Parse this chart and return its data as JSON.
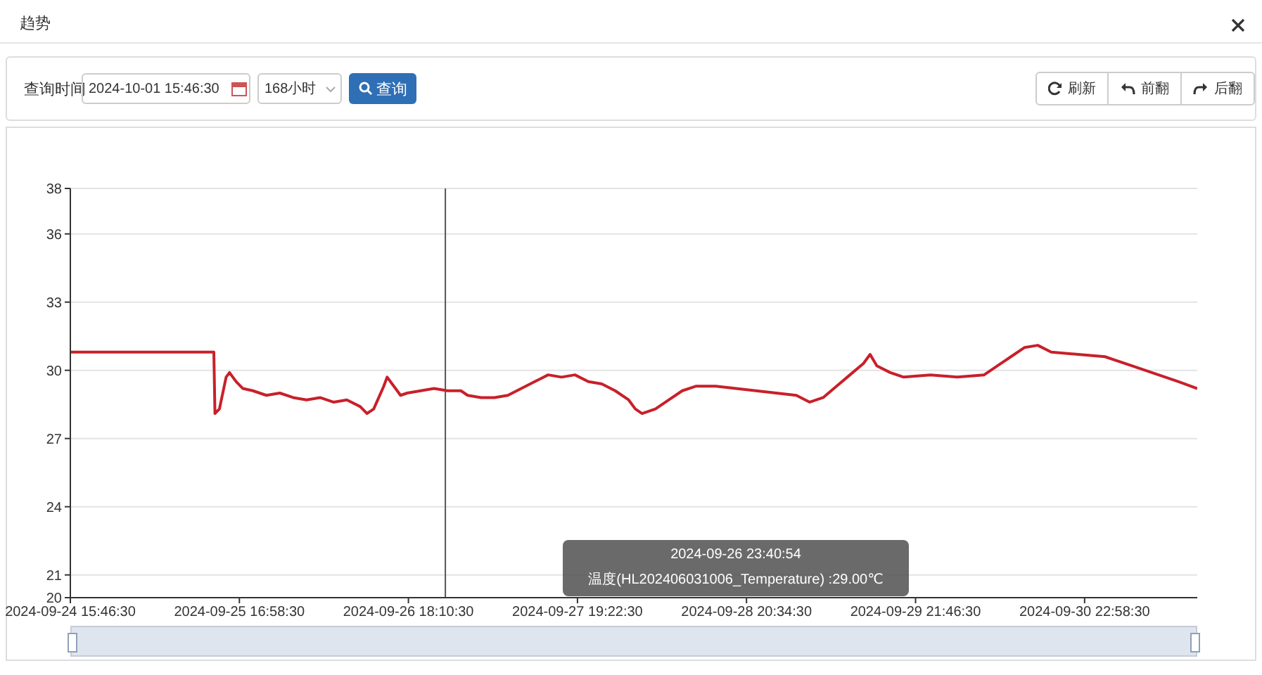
{
  "chart_data": {
    "type": "line",
    "title": "趋势",
    "annotations": [
      "查询时间",
      "2024-10-01 15:46:30",
      "168小时",
      "查询",
      "刷新",
      "前翻",
      "后翻",
      "2024-09-26 23:40:54",
      "温度(HL202406031006_Temperature) :29.00℃"
    ],
    "x": [
      "2024-09-24T15:46:30",
      "2024-09-25T13:10",
      "2024-09-25T13:20",
      "2024-09-25T14:00",
      "2024-09-25T15:00",
      "2024-09-25T15:30",
      "2024-09-25T16:30",
      "2024-09-25T17:30",
      "2024-09-25T19:00",
      "2024-09-25T21:00",
      "2024-09-25T23:00",
      "2024-09-26T01:00",
      "2024-09-26T03:00",
      "2024-09-26T05:00",
      "2024-09-26T07:00",
      "2024-09-26T09:00",
      "2024-09-26T11:00",
      "2024-09-26T12:00",
      "2024-09-26T13:00",
      "2024-09-26T14:30",
      "2024-09-26T15:00",
      "2024-09-26T16:00",
      "2024-09-26T17:00",
      "2024-09-26T18:00",
      "2024-09-26T20:00",
      "2024-09-26T22:00",
      "2024-09-27T00:00",
      "2024-09-27T02:00",
      "2024-09-27T03:00",
      "2024-09-27T05:00",
      "2024-09-27T07:00",
      "2024-09-27T09:00",
      "2024-09-27T11:00",
      "2024-09-27T13:00",
      "2024-09-27T15:00",
      "2024-09-27T17:00",
      "2024-09-27T19:00",
      "2024-09-27T21:00",
      "2024-09-27T23:00",
      "2024-09-28T01:00",
      "2024-09-28T03:00",
      "2024-09-28T04:00",
      "2024-09-28T05:00",
      "2024-09-28T07:00",
      "2024-09-28T09:00",
      "2024-09-28T11:00",
      "2024-09-28T13:00",
      "2024-09-28T16:00",
      "2024-09-28T19:00",
      "2024-09-28T22:00",
      "2024-09-29T01:00",
      "2024-09-29T04:00",
      "2024-09-29T06:00",
      "2024-09-29T08:00",
      "2024-09-29T10:00",
      "2024-09-29T12:00",
      "2024-09-29T14:00",
      "2024-09-29T15:00",
      "2024-09-29T16:00",
      "2024-09-29T18:00",
      "2024-09-29T20:00",
      "2024-09-30T00:00",
      "2024-09-30T04:00",
      "2024-09-30T08:00",
      "2024-09-30T10:00",
      "2024-09-30T12:00",
      "2024-09-30T14:00",
      "2024-09-30T16:00",
      "2024-09-30T18:00",
      "2024-09-30T22:00",
      "2024-10-01T02:00",
      "2024-10-01T06:00",
      "2024-10-01T10:00",
      "2024-10-01T13:00",
      "2024-10-01T15:46:30"
    ],
    "series": [
      {
        "color": "#c8202a",
        "values": [
          30.8,
          30.8,
          28.1,
          28.3,
          29.7,
          29.9,
          29.5,
          29.2,
          29.1,
          28.9,
          29.0,
          28.8,
          28.7,
          28.8,
          28.6,
          28.7,
          28.4,
          28.1,
          28.3,
          29.3,
          29.7,
          29.3,
          28.9,
          29.0,
          29.1,
          29.2,
          29.1,
          29.1,
          28.9,
          28.8,
          28.8,
          28.9,
          29.2,
          29.5,
          29.8,
          29.7,
          29.8,
          29.5,
          29.4,
          29.1,
          28.7,
          28.3,
          28.1,
          28.3,
          28.7,
          29.1,
          29.3,
          29.3,
          29.2,
          29.1,
          29.0,
          28.9,
          28.6,
          28.8,
          29.3,
          29.8,
          30.3,
          30.7,
          30.2,
          29.9,
          29.7,
          29.8,
          29.7,
          29.8,
          30.2,
          30.6,
          31.0,
          31.1,
          30.8,
          30.7,
          30.6,
          30.2,
          29.8,
          29.5,
          29.2
        ]
      }
    ],
    "xlim": [
      "2024-09-24T15:46:30",
      "2024-10-01T15:46:30"
    ],
    "xticks": [
      {
        "value": "2024-09-24T15:46:30",
        "label": "2024-09-24 15:46:30"
      },
      {
        "value": "2024-09-25T16:58:30",
        "label": "2024-09-25 16:58:30"
      },
      {
        "value": "2024-09-26T18:10:30",
        "label": "2024-09-26 18:10:30"
      },
      {
        "value": "2024-09-27T19:22:30",
        "label": "2024-09-27 19:22:30"
      },
      {
        "value": "2024-09-28T20:34:30",
        "label": "2024-09-28 20:34:30"
      },
      {
        "value": "2024-09-29T21:46:30",
        "label": "2024-09-29 21:46:30"
      },
      {
        "value": "2024-09-30T22:58:30",
        "label": "2024-09-30 22:58:30"
      }
    ],
    "ylim": [
      20,
      38
    ],
    "yticks": [
      20,
      21,
      24,
      27,
      30,
      33,
      36,
      38
    ],
    "ref_lines": [
      {
        "axis": "x",
        "value": "2024-09-26T23:40:54",
        "color": "#555555"
      }
    ],
    "grid": "y",
    "marker": "none",
    "line_style": "solid",
    "legend": false
  }
}
